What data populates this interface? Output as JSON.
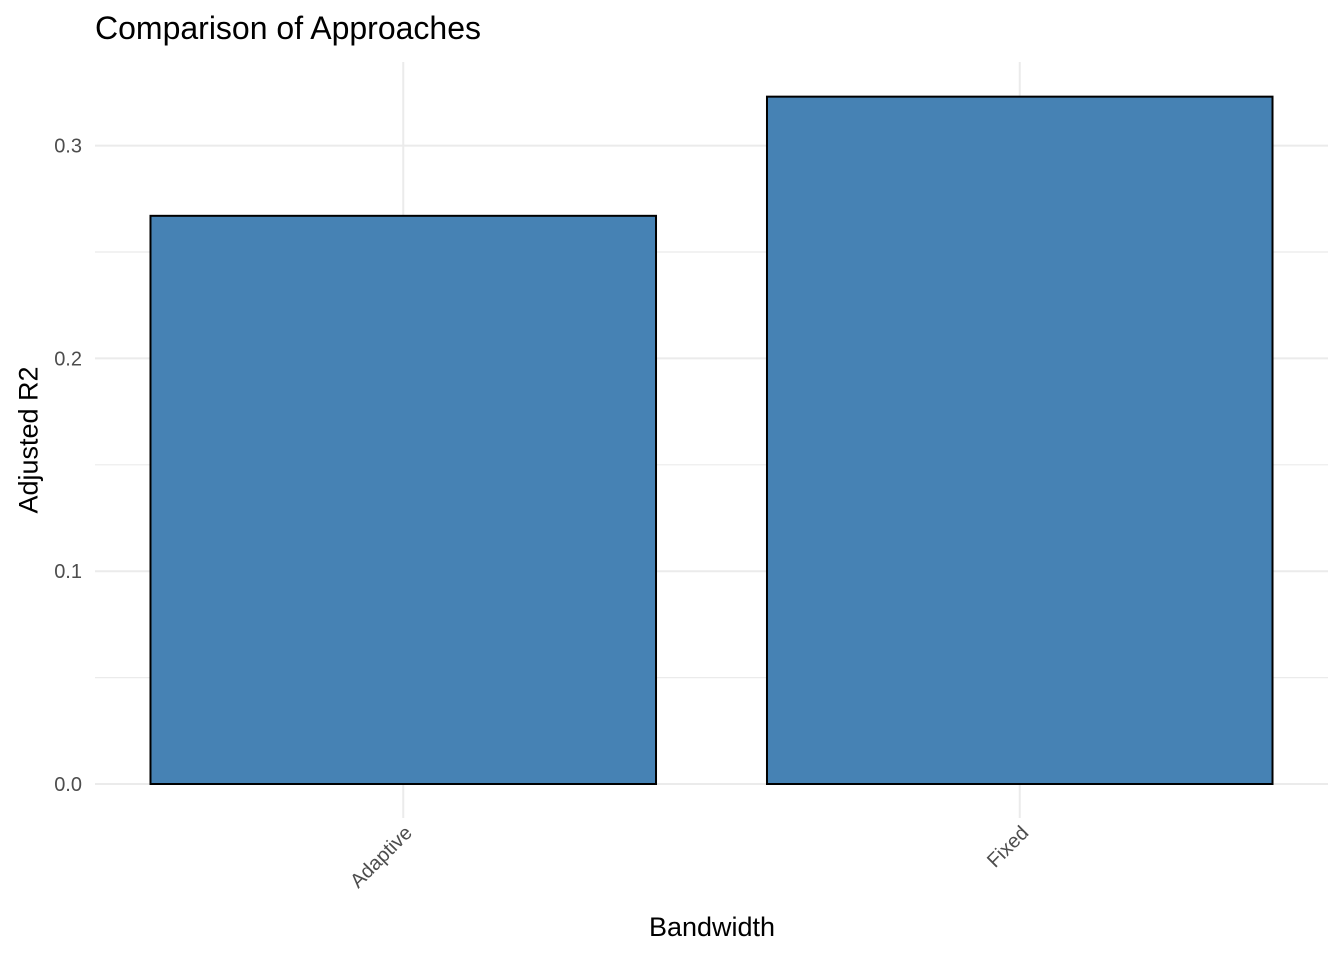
{
  "chart_data": {
    "type": "bar",
    "title": "Comparison of Approaches",
    "xlabel": "Bandwidth",
    "ylabel": "Adjusted R2",
    "categories": [
      "Adaptive",
      "Fixed"
    ],
    "values": [
      0.267,
      0.323
    ],
    "ylim": [
      0,
      0.34
    ],
    "yticks": [
      "0.0",
      "0.1",
      "0.2",
      "0.3"
    ],
    "grid": true,
    "legend": "none",
    "x_tick_rotation": "45-degree",
    "colors": {
      "bar_fill": "#4682B4",
      "bar_stroke": "#000000",
      "grid": "#ebebeb",
      "tick_text": "#4d4d4d"
    }
  }
}
